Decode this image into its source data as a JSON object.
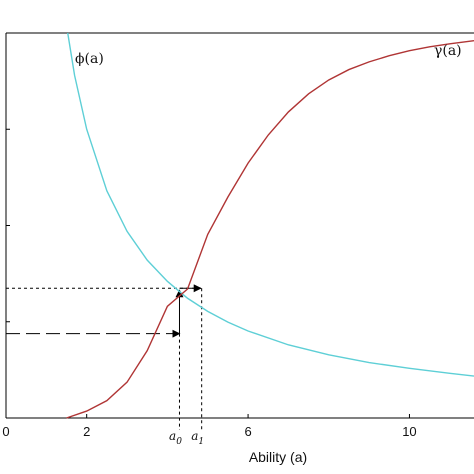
{
  "chart_data": {
    "type": "line",
    "title": "",
    "xlabel": "Ability (a)",
    "ylabel": "",
    "xlim": [
      0,
      11.6
    ],
    "ylim": [
      0,
      1
    ],
    "x_ticks": [
      0,
      2,
      6,
      10
    ],
    "x_tick_labels": [
      "0",
      "2",
      "6",
      "10"
    ],
    "grid": false,
    "series": [
      {
        "name": "ϕ(a)",
        "color": "#5ecfd6",
        "x": [
          1.53,
          1.7,
          2.0,
          2.5,
          3.0,
          3.5,
          4.0,
          4.5,
          5.0,
          5.5,
          6.0,
          7.0,
          8.0,
          9.0,
          10.0,
          11.0,
          11.6
        ],
        "y": [
          1.0,
          0.89,
          0.75,
          0.59,
          0.485,
          0.41,
          0.355,
          0.311,
          0.277,
          0.249,
          0.226,
          0.19,
          0.164,
          0.144,
          0.129,
          0.116,
          0.109
        ]
      },
      {
        "name": "γ(a)",
        "color": "#b03535",
        "x": [
          1.5,
          2.0,
          2.5,
          3.0,
          3.5,
          4.0,
          4.5,
          5.0,
          5.5,
          6.0,
          6.5,
          7.0,
          7.5,
          8.0,
          8.5,
          9.0,
          9.5,
          10.0,
          10.5,
          11.0,
          11.6
        ],
        "y": [
          0.0,
          0.018,
          0.045,
          0.093,
          0.175,
          0.29,
          0.335,
          0.477,
          0.574,
          0.662,
          0.735,
          0.795,
          0.842,
          0.878,
          0.905,
          0.925,
          0.941,
          0.954,
          0.964,
          0.972,
          0.98
        ]
      }
    ],
    "annotations": [
      {
        "label": "a",
        "sub": "0",
        "x": 4.3,
        "y": 0.219
      },
      {
        "label": "a",
        "sub": "1",
        "x": 4.85,
        "y": 0.337
      }
    ]
  }
}
